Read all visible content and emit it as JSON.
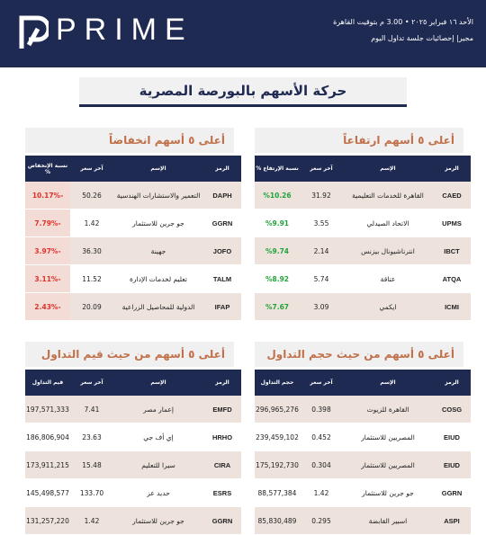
{
  "header": {
    "logo": "PRIME",
    "date_line": "الأحد ١٦ فبراير ٢٠٢٥ • 3.00 م بتوقيت القاهرة",
    "subtitle": "مجير| إحصائيات جلسة تداول اليوم"
  },
  "title": "حركة الأسهم بالبورصة المصرية",
  "panels": [
    {
      "title": "أعلى ٥ أسهم ارتفاعاً",
      "kind": "up",
      "columns": [
        "الرمز",
        "الإسم",
        "آخر سعر",
        "نسبة الإرتفاع %"
      ],
      "rows": [
        [
          "CAED",
          "القاهرة للخدمات التعليمية",
          "31.92",
          "%10.26"
        ],
        [
          "UPMS",
          "الاتحاد الصيدلي",
          "3.55",
          "%9.91"
        ],
        [
          "IBCT",
          "انترناشيونال بيزنس",
          "2.14",
          "%9.74"
        ],
        [
          "ATQA",
          "عتاقة",
          "5.74",
          "%8.92"
        ],
        [
          "ICMI",
          "ايكمي",
          "3.09",
          "%7.67"
        ]
      ]
    },
    {
      "title": "أعلى ٥ أسهم انخفاضاً",
      "kind": "down",
      "columns": [
        "الرمز",
        "الإسم",
        "آخر سعر",
        "نسبة الإنخفاض %"
      ],
      "rows": [
        [
          "DAPH",
          "التعمير والاستشارات الهندسية",
          "50.26",
          "-10.17%"
        ],
        [
          "GGRN",
          "جو جرين للاستثمار",
          "1.42",
          "-7.79%"
        ],
        [
          "JOFO",
          "جهينة",
          "36.30",
          "-3.97%"
        ],
        [
          "TALM",
          "تعليم لخدمات الإدارة",
          "11.52",
          "-3.11%"
        ],
        [
          "IFAP",
          "الدولية للمحاصيل الزراعية",
          "20.09",
          "-2.43%"
        ]
      ]
    },
    {
      "title": "أعلى ٥ أسهم من حيث حجم التداول",
      "kind": "plain",
      "columns": [
        "الرمز",
        "الإسم",
        "آخر سعر",
        "حجم التداول"
      ],
      "rows": [
        [
          "COSG",
          "القاهرة للزيوت",
          "0.398",
          "296,965,276"
        ],
        [
          "EIUD",
          "المصريين للاستثمار",
          "0.452",
          "239,459,102"
        ],
        [
          "EIUD",
          "المصريين للاستثمار",
          "0.304",
          "175,192,730"
        ],
        [
          "GGRN",
          "جو جرين للاستثمار",
          "1.42",
          "88,577,384"
        ],
        [
          "ASPI",
          "اسبير القابضة",
          "0.295",
          "85,830,489"
        ]
      ]
    },
    {
      "title": "أعلى ٥ أسهم من حيث قيم التداول",
      "kind": "plain",
      "columns": [
        "الرمز",
        "الإسم",
        "آخر سعر",
        "قيم التداول"
      ],
      "rows": [
        [
          "EMFD",
          "إعمار مصر",
          "7.41",
          "197,571,333"
        ],
        [
          "HRHO",
          "إي أف جي",
          "23.63",
          "186,806,904"
        ],
        [
          "CIRA",
          "سيرا للتعليم",
          "15.48",
          "173,911,215"
        ],
        [
          "ESRS",
          "حديد عز",
          "133.70",
          "145,498,577"
        ],
        [
          "GGRN",
          "جو جرين للاستثمار",
          "1.42",
          "131,257,220"
        ]
      ]
    }
  ]
}
